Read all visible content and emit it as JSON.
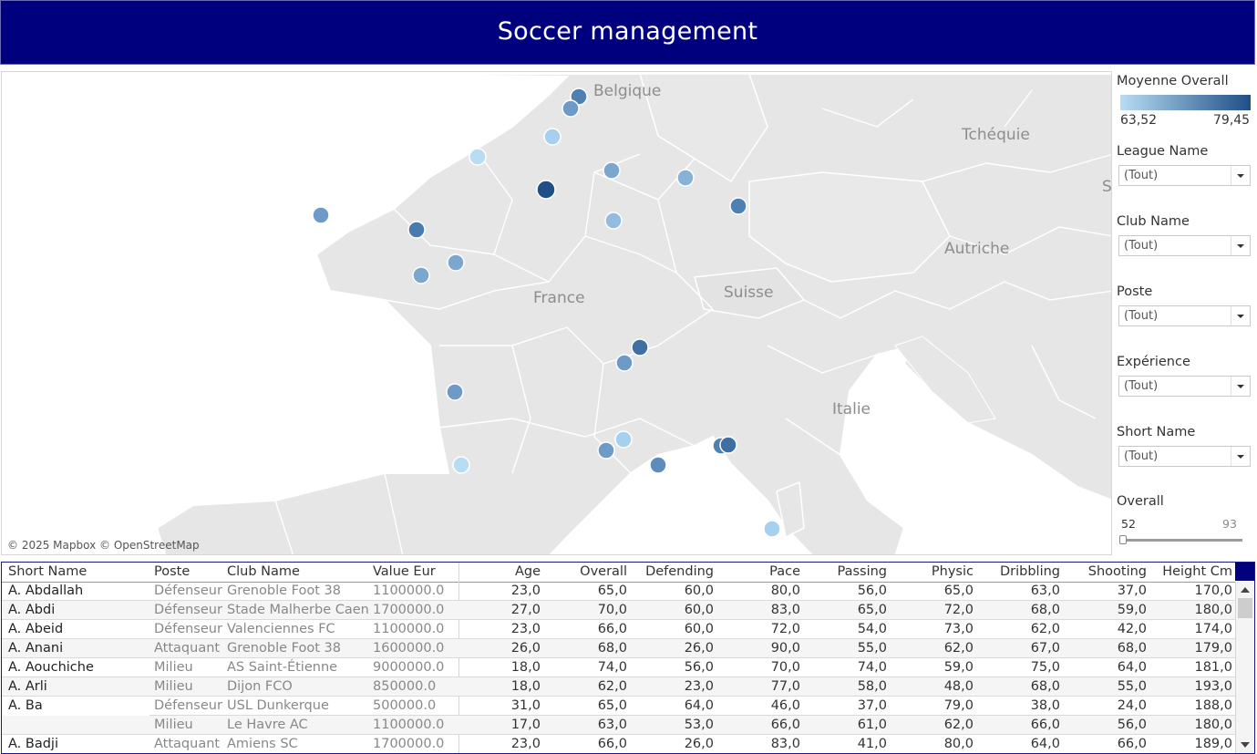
{
  "header": {
    "title": "Soccer management"
  },
  "map": {
    "attribution": "© 2025 Mapbox © OpenStreetMap",
    "labels": [
      "Belgique",
      "Tchéquie",
      "S",
      "Autriche",
      "France",
      "Suisse",
      "Italie"
    ],
    "marker_color_low": "#b5d9f0",
    "marker_color_high": "#1f4f86"
  },
  "sidebar": {
    "legend": {
      "title": "Moyenne Overall",
      "min": "63,52",
      "max": "79,45"
    },
    "filters": [
      {
        "title": "League Name",
        "value": "(Tout)"
      },
      {
        "title": "Club Name",
        "value": "(Tout)"
      },
      {
        "title": "Poste",
        "value": "(Tout)"
      },
      {
        "title": "Expérience",
        "value": "(Tout)"
      },
      {
        "title": "Short Name",
        "value": "(Tout)"
      }
    ],
    "overall_slider": {
      "title": "Overall",
      "min": "52",
      "max": "93"
    }
  },
  "table": {
    "columns": [
      "Short Name",
      "Poste",
      "Club Name",
      "Value Eur",
      "Age",
      "Overall",
      "Defending",
      "Pace",
      "Passing",
      "Physic",
      "Dribbling",
      "Shooting",
      "Height Cm"
    ],
    "rows": [
      {
        "name": "A. Abdallah",
        "poste": "Défenseur",
        "club": "Grenoble Foot 38",
        "value": "1100000.0",
        "nums": [
          "23,0",
          "65,0",
          "60,0",
          "80,0",
          "56,0",
          "65,0",
          "63,0",
          "37,0",
          "170,0"
        ]
      },
      {
        "name": "A. Abdi",
        "poste": "Défenseur",
        "club": "Stade Malherbe Caen",
        "value": "1700000.0",
        "nums": [
          "27,0",
          "70,0",
          "60,0",
          "83,0",
          "65,0",
          "72,0",
          "68,0",
          "59,0",
          "180,0"
        ]
      },
      {
        "name": "A. Abeid",
        "poste": "Défenseur",
        "club": "Valenciennes FC",
        "value": "1100000.0",
        "nums": [
          "23,0",
          "66,0",
          "60,0",
          "72,0",
          "54,0",
          "73,0",
          "62,0",
          "42,0",
          "174,0"
        ]
      },
      {
        "name": "A. Anani",
        "poste": "Attaquant",
        "club": "Grenoble Foot 38",
        "value": "1600000.0",
        "nums": [
          "26,0",
          "68,0",
          "26,0",
          "90,0",
          "55,0",
          "62,0",
          "67,0",
          "68,0",
          "179,0"
        ]
      },
      {
        "name": "A. Aouchiche",
        "poste": "Milieu",
        "club": "AS Saint-Étienne",
        "value": "9000000.0",
        "nums": [
          "18,0",
          "74,0",
          "56,0",
          "70,0",
          "74,0",
          "59,0",
          "75,0",
          "64,0",
          "181,0"
        ]
      },
      {
        "name": "A. Arli",
        "poste": "Milieu",
        "club": "Dijon FCO",
        "value": "850000.0",
        "nums": [
          "18,0",
          "62,0",
          "23,0",
          "77,0",
          "58,0",
          "48,0",
          "68,0",
          "55,0",
          "193,0"
        ]
      },
      {
        "name": "A. Ba",
        "poste": "Défenseur",
        "club": "USL Dunkerque",
        "value": "500000.0",
        "nums": [
          "31,0",
          "65,0",
          "64,0",
          "46,0",
          "37,0",
          "79,0",
          "38,0",
          "24,0",
          "188,0"
        ]
      },
      {
        "name": "",
        "poste": "Milieu",
        "club": "Le Havre AC",
        "value": "1100000.0",
        "nums": [
          "17,0",
          "63,0",
          "53,0",
          "66,0",
          "61,0",
          "62,0",
          "66,0",
          "56,0",
          "180,0"
        ]
      },
      {
        "name": "A. Badji",
        "poste": "Attaquant",
        "club": "Amiens SC",
        "value": "1700000.0",
        "nums": [
          "23,0",
          "66,0",
          "26,0",
          "83,0",
          "41,0",
          "80,0",
          "64,0",
          "66,0",
          "189,0"
        ]
      }
    ]
  }
}
